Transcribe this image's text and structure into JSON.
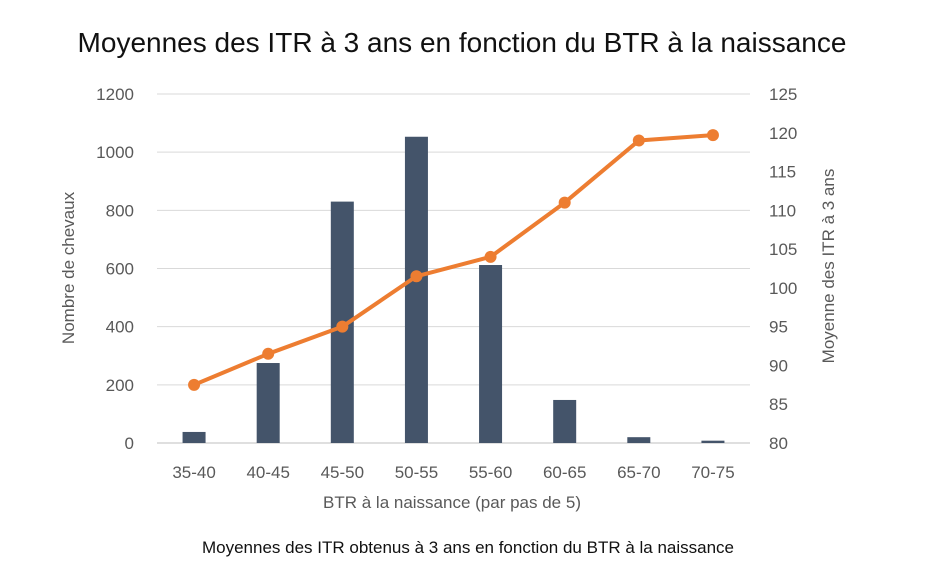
{
  "chart_data": {
    "type": "bar+line",
    "title": "Moyennes des ITR à 3 ans en fonction du BTR à la naissance",
    "caption": "Moyennes des ITR obtenus à 3 ans en fonction du BTR à la naissance",
    "xlabel": "BTR à la naissance (par pas de 5)",
    "ylabel_left": "Nombre de chevaux",
    "ylabel_right": "Moyenne des ITR à 3 ans",
    "categories": [
      "35-40",
      "40-45",
      "45-50",
      "50-55",
      "55-60",
      "60-65",
      "65-70",
      "70-75"
    ],
    "ylim_left": [
      0,
      1200
    ],
    "yticks_left": [
      "0",
      "200",
      "400",
      "600",
      "800",
      "1000",
      "1200"
    ],
    "ylim_right": [
      80,
      125
    ],
    "yticks_right": [
      "80",
      "85",
      "90",
      "95",
      "100",
      "105",
      "110",
      "115",
      "120",
      "125"
    ],
    "grid": true,
    "legend": "none",
    "series": [
      {
        "type": "bar",
        "axis": "left",
        "color": "#44546a",
        "values": [
          38,
          275,
          830,
          1053,
          612,
          148,
          20,
          8
        ]
      },
      {
        "type": "line",
        "axis": "right",
        "color": "#ed7d31",
        "values": [
          87.5,
          91.5,
          95,
          101.5,
          104,
          111,
          119,
          119.7
        ]
      }
    ]
  }
}
